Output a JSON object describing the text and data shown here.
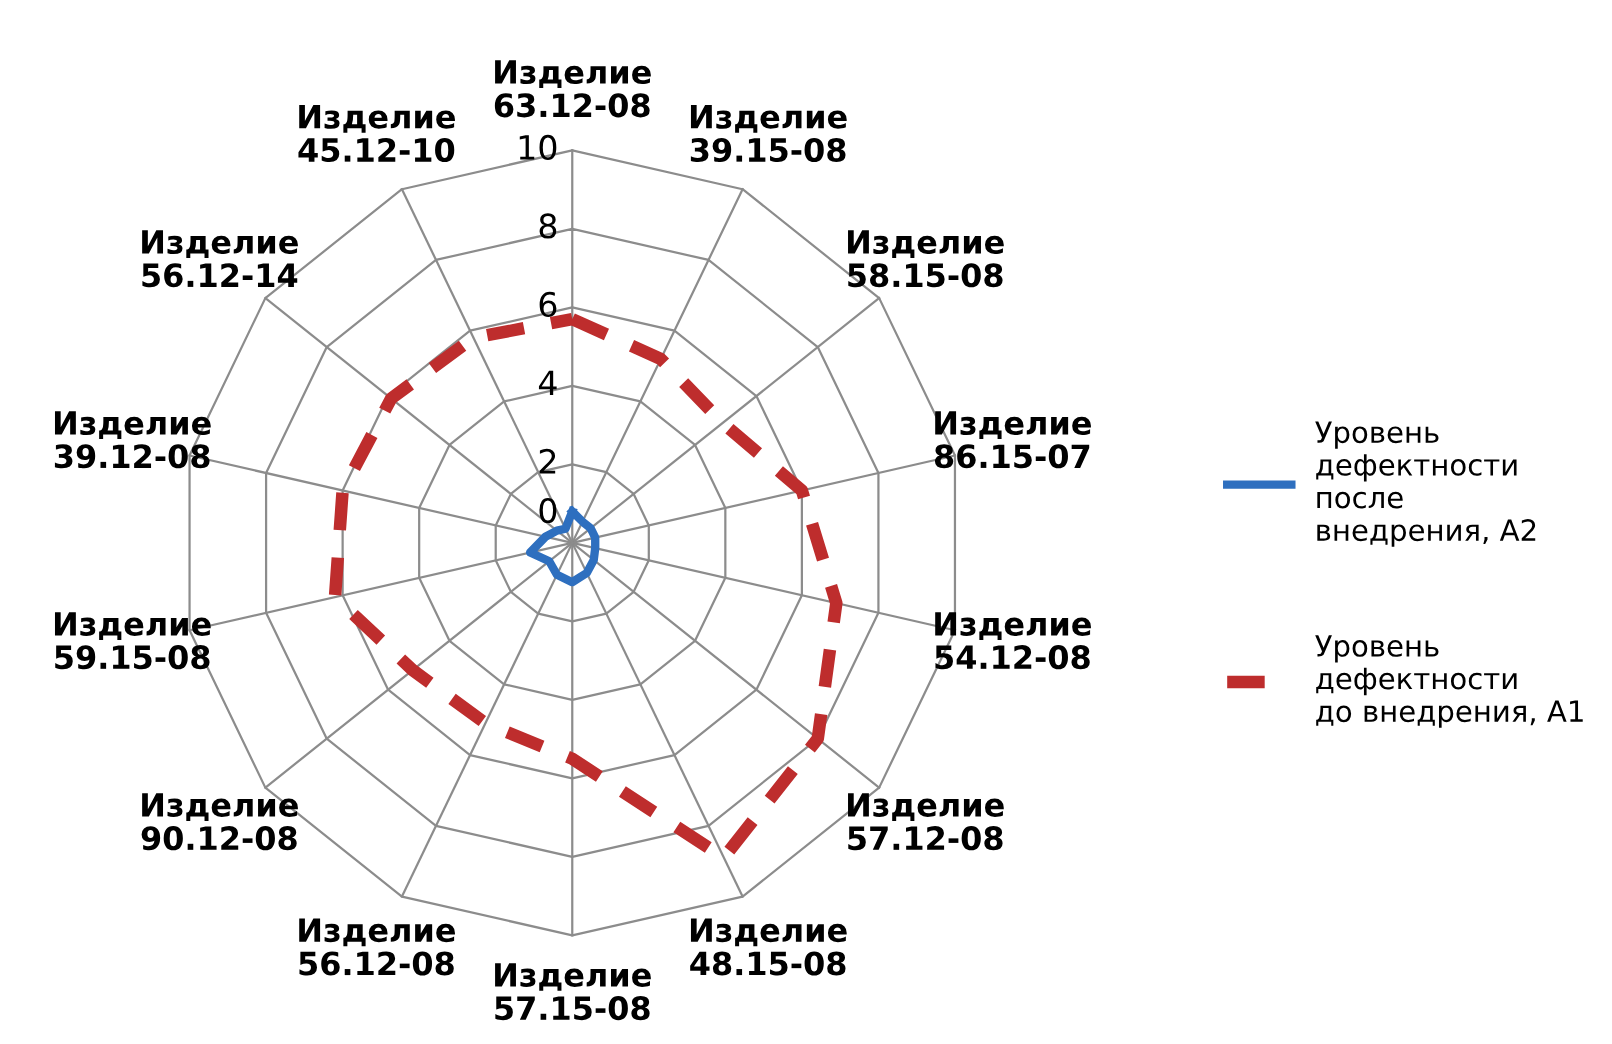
{
  "chart_data": {
    "type": "radar",
    "categories": [
      "Изделие\n63.12-08",
      "Изделие\n39.15-08",
      "Изделие\n58.15-08",
      "Изделие\n86.15-07",
      "Изделие\n54.12-08",
      "Изделие\n57.12-08",
      "Изделие\n48.15-08",
      "Изделие\n57.15-08",
      "Изделие\n56.12-08",
      "Изделие\n90.12-08",
      "Изделие\n59.15-08",
      "Изделие\n39.12-08",
      "Изделие\n56.12-14",
      "Изделие\n45.12-10"
    ],
    "series": [
      {
        "name": "Уровень\nдефектности\nпосле\nвнедрения, А2",
        "color": "#2e6fbf",
        "line_style": "solid",
        "values": [
          0.8,
          0.6,
          0.6,
          0.6,
          0.6,
          0.7,
          0.85,
          1.0,
          0.9,
          0.75,
          1.1,
          0.7,
          0.5,
          0.4
        ]
      },
      {
        "name": "Уровень\nдефектности\nдо внедрения, А1",
        "color": "#be2d2d",
        "line_style": "dashed",
        "values": [
          5.7,
          5.2,
          4.9,
          6.0,
          6.9,
          8.0,
          8.9,
          5.5,
          5.1,
          5.2,
          6.2,
          6.0,
          5.9,
          5.8
        ]
      }
    ],
    "ylim": [
      0,
      10
    ],
    "yticks": [
      0,
      2,
      4,
      6,
      8,
      10
    ],
    "grid": true,
    "legend": "right",
    "marker": "none"
  }
}
